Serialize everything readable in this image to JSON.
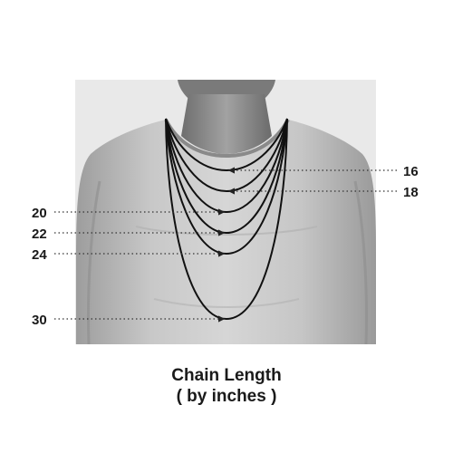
{
  "caption": {
    "title": "Chain Length",
    "subtitle": "( by inches )"
  },
  "chains": [
    {
      "label": "16",
      "side": "right"
    },
    {
      "label": "18",
      "side": "right"
    },
    {
      "label": "20",
      "side": "left"
    },
    {
      "label": "22",
      "side": "left"
    },
    {
      "label": "24",
      "side": "left"
    },
    {
      "label": "30",
      "side": "left"
    }
  ],
  "colors": {
    "background": "#ffffff",
    "photo_background": "#e9e9e9",
    "shirt": "#bdbdbd",
    "skin": "#8f8f8f",
    "chain": "#111111",
    "leader": "#333333"
  }
}
